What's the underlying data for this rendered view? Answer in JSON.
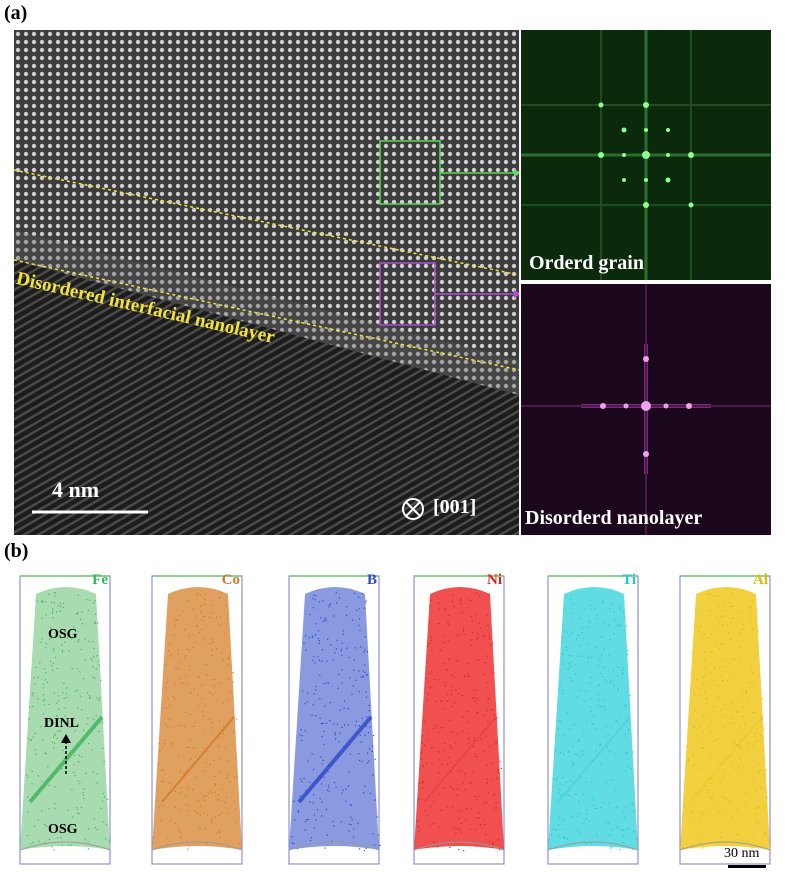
{
  "panel_a": {
    "label": "(a)",
    "interface_label": "Disordered interfacial nanolayer",
    "scale_bar": "4 nm",
    "zone_axis": "[001]",
    "fft_top_label": "Orderd grain",
    "fft_bottom_label": "Disorderd nanolayer",
    "colors": {
      "ordered_box": "#5ddc5d",
      "disordered_box": "#b44cd8",
      "interface_line": "#f2e33a"
    }
  },
  "panel_b": {
    "label": "(b)",
    "scale_bar": "30 nm",
    "annotations": {
      "osg_top": "OSG",
      "dinl": "DINL",
      "osg_bottom": "OSG"
    },
    "elements": [
      {
        "symbol": "Fe",
        "color": "#3cb45a",
        "fill": "#a8dcb0"
      },
      {
        "symbol": "Co",
        "color": "#d2782a",
        "fill": "#e0a060"
      },
      {
        "symbol": "B",
        "color": "#2c48c8",
        "fill": "#8a9ae0"
      },
      {
        "symbol": "Ni",
        "color": "#e01e1e",
        "fill": "#f05050"
      },
      {
        "symbol": "Ti",
        "color": "#1ec8d2",
        "fill": "#60dce2"
      },
      {
        "symbol": "Al",
        "color": "#e6b800",
        "fill": "#f2d040"
      }
    ]
  }
}
